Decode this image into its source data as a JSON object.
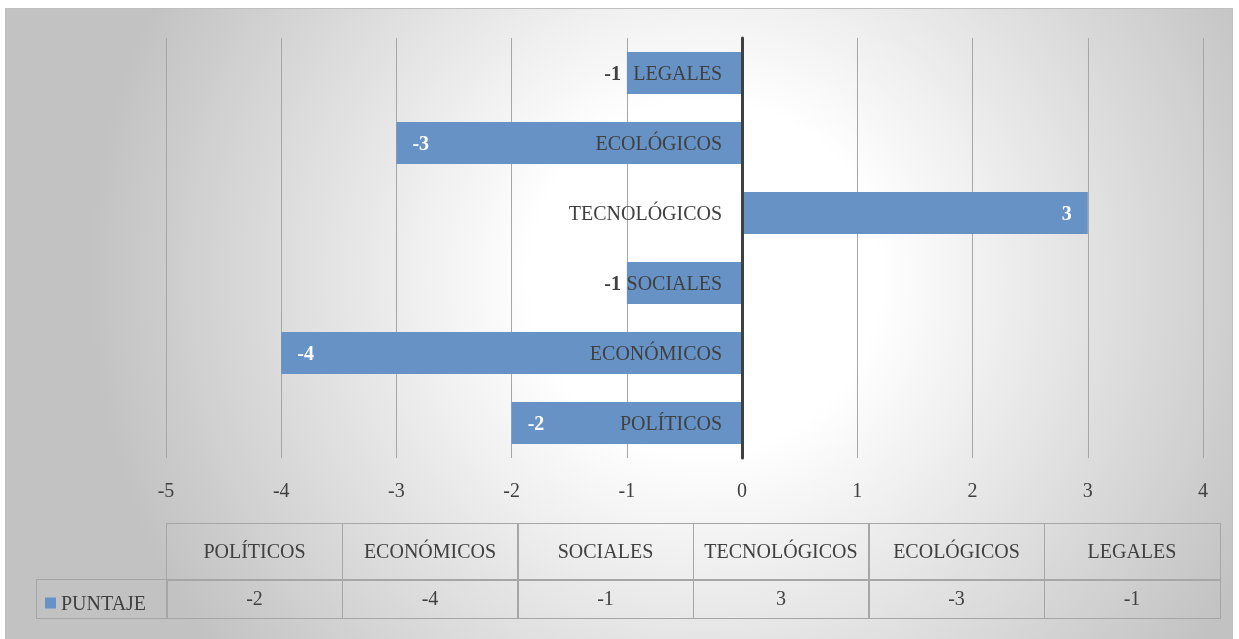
{
  "chart_data": {
    "type": "bar",
    "orientation": "horizontal",
    "categories": [
      "LEGALES",
      "ECOLÓGICOS",
      "TECNOLÓGICOS",
      "SOCIALES",
      "ECONÓMICOS",
      "POLÍTICOS"
    ],
    "series": [
      {
        "name": "PUNTAJE",
        "color": "#6692c6",
        "values": [
          -1,
          -3,
          3,
          -1,
          -4,
          -2
        ],
        "value_labels": [
          "-1",
          "-3",
          "3",
          "-1",
          "-4",
          "-2"
        ]
      }
    ],
    "xlim": [
      -5,
      4
    ],
    "xticks": [
      -5,
      -4,
      -3,
      -2,
      -1,
      0,
      1,
      2,
      3,
      4
    ],
    "grid": "x",
    "legend": "bottom left"
  }
}
